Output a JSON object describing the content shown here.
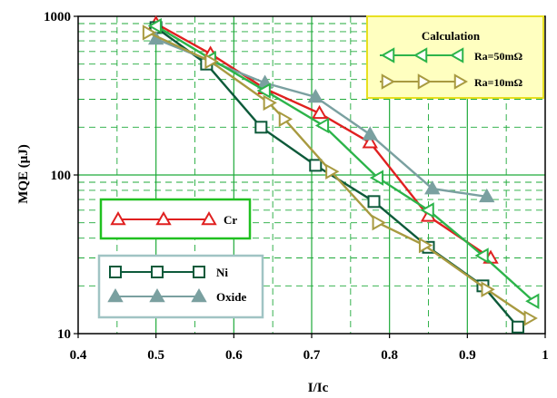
{
  "chart_data": {
    "type": "line",
    "xlabel": "I/Ic",
    "ylabel": "MQE (μJ)",
    "xlim": [
      0.4,
      1.0
    ],
    "ylim": [
      10,
      1000
    ],
    "yscale": "log",
    "x_ticks": [
      0.4,
      0.5,
      0.6,
      0.7,
      0.8,
      0.9,
      1.0
    ],
    "x_tick_labels": [
      "0.4",
      "0.5",
      "0.6",
      "0.7",
      "0.8",
      "0.9",
      "1"
    ],
    "y_ticks": [
      10,
      100,
      1000
    ],
    "y_tick_labels": [
      "10",
      "100",
      "1000"
    ],
    "grid": "dashed, green, major and minor",
    "series": [
      {
        "name": "Cr",
        "color": "#e02020",
        "marker": "triangle-up-open",
        "x": [
          0.5,
          0.57,
          0.64,
          0.71,
          0.775,
          0.85,
          0.93
        ],
        "y": [
          900,
          580,
          350,
          245,
          160,
          55,
          30
        ]
      },
      {
        "name": "Ni",
        "color": "#0d5a3a",
        "marker": "square-open",
        "x": [
          0.5,
          0.565,
          0.635,
          0.705,
          0.78,
          0.85,
          0.92,
          0.965
        ],
        "y": [
          850,
          500,
          200,
          115,
          68,
          35,
          20,
          11
        ]
      },
      {
        "name": "Oxide",
        "color": "#7aa0a0",
        "marker": "triangle-up-filled",
        "x": [
          0.5,
          0.64,
          0.705,
          0.775,
          0.855,
          0.925
        ],
        "y": [
          720,
          380,
          310,
          180,
          82,
          73
        ]
      },
      {
        "name": "Ra=50mΩ",
        "color": "#2cb44a",
        "marker": "triangle-left-open",
        "x": [
          0.5,
          0.57,
          0.64,
          0.715,
          0.785,
          0.85,
          0.92,
          0.985
        ],
        "y": [
          870,
          540,
          340,
          205,
          96,
          60,
          31,
          16
        ]
      },
      {
        "name": "Ra=10mΩ",
        "color": "#a89a40",
        "marker": "triangle-right-open",
        "x": [
          0.49,
          0.57,
          0.645,
          0.665,
          0.725,
          0.785,
          0.845,
          0.925,
          0.98
        ],
        "y": [
          790,
          520,
          285,
          225,
          105,
          50,
          36,
          19,
          12.5
        ]
      }
    ],
    "legends": [
      {
        "title": "Calculation",
        "entries": [
          "Ra=50mΩ",
          "Ra=10mΩ"
        ],
        "border_color": "#e8e020",
        "placement": "top-right"
      },
      {
        "title": "",
        "entries": [
          "Cr"
        ],
        "border_color": "#20c020",
        "placement": "middle-left"
      },
      {
        "title": "",
        "entries": [
          "Ni",
          "Oxide"
        ],
        "border_color": "#a0c4c4",
        "placement": "bottom-left"
      }
    ],
    "legend_labels": {
      "calculation_title": "Calculation",
      "ra50": "Ra=50mΩ",
      "ra10": "Ra=10mΩ",
      "cr": "Cr",
      "ni": "Ni",
      "oxide": "Oxide"
    }
  }
}
